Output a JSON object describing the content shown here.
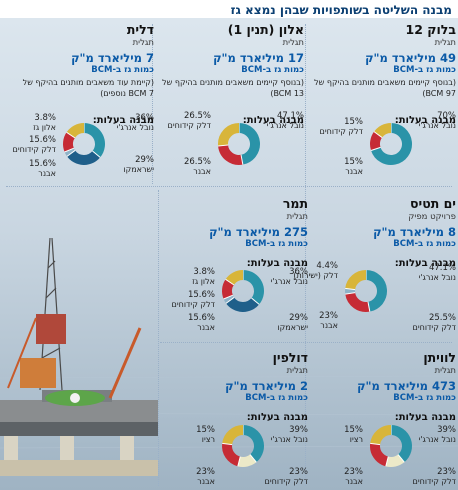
{
  "title": "מבנה השליטה בשותפויות שבהן נמצא גז",
  "colors": {
    "delek": "#c62b35",
    "noble": "#2a93a8",
    "ratio": "#d8b53a",
    "israamco": "#1f5f8a",
    "alon": "#8fb3c8",
    "other": "#ece9c8",
    "title": "#0b3f72",
    "qty": "#0b5aa7"
  },
  "panels": [
    {
      "name": "בלוק 12",
      "kind": "תגלית",
      "qty": "49 מיליארד מ\"ק",
      "qty_label": "כמות גז ב-BCM",
      "note": "(בנוסף קיימים משאבים מותנים בהיקף של BCM 97)",
      "ownership_label": "מבנה בעלות:",
      "labels": [
        {
          "pct": "70%",
          "text": "נובל אנרג'י"
        },
        {
          "pct": "15%",
          "text": "דלק קידוחים"
        },
        {
          "pct": "15%",
          "text": "אבנר"
        }
      ]
    },
    {
      "name": "אלון (תנין 1)",
      "kind": "תגלית",
      "qty": "17 מיליארד מ\"ק",
      "qty_label": "כמות גז ב-BCM",
      "note": "(בנוסף קיימים משאבים מותנים בהיקף של BCM 13)",
      "ownership_label": "מבנה בעלות:",
      "labels": [
        {
          "pct": "47.1%",
          "text": "נובל אנרג'י"
        },
        {
          "pct": "26.5%",
          "text": "דלק קידוחים"
        },
        {
          "pct": "26.5%",
          "text": "אבנר"
        }
      ]
    },
    {
      "name": "דלית",
      "kind": "תגלית",
      "qty": "7 מיליארד מ\"ק",
      "qty_label": "כמות גז ב-BCM",
      "note": "(קיימת עוד משאבים מותנים בהיקף של BCM 7 נוספים)",
      "ownership_label": "מבנה בעלות:",
      "labels": [
        {
          "pct": "36%",
          "text": "נובל אנרג'י"
        },
        {
          "pct": "29%",
          "text": "ישראמקו"
        },
        {
          "pct": "3.8%",
          "text": "אלון גז"
        },
        {
          "pct": "15.6%",
          "text": "דלק קידוחים"
        },
        {
          "pct": "15.6%",
          "text": "אבנר"
        }
      ]
    },
    {
      "name": "ים תטיס",
      "kind": "פרויקט מפיק",
      "qty": "8 מיליארד מ\"ק",
      "qty_label": "כמות גז ב-BCM",
      "note": "",
      "ownership_label": "מבנה בעלות:",
      "labels": [
        {
          "pct": "47.1%",
          "text": "נובל אנרג'י"
        },
        {
          "pct": "25.5%",
          "text": "דלק קידוחים"
        },
        {
          "pct": "4.4%",
          "text": "דלק (ישירות)"
        },
        {
          "pct": "23%",
          "text": "אבנר"
        }
      ]
    },
    {
      "name": "תמר",
      "kind": "תגלית",
      "qty": "275 מיליארד מ\"ק",
      "qty_label": "כמות גז ב-BCM",
      "note": "",
      "ownership_label": "מבנה בעלות:",
      "labels": [
        {
          "pct": "36%",
          "text": "נובל אנרג'י"
        },
        {
          "pct": "29%",
          "text": "ישראמקו"
        },
        {
          "pct": "3.8%",
          "text": "אלון גז"
        },
        {
          "pct": "15.6%",
          "text": "דלק קידוחים"
        },
        {
          "pct": "15.6%",
          "text": "אבנר"
        }
      ]
    },
    {
      "name": "לוויתן",
      "kind": "תגלית",
      "qty": "473 מיליארד מ\"ק",
      "qty_label": "כמות גז ב-BCM",
      "note": "",
      "ownership_label": "מבנה בעלות:",
      "labels": [
        {
          "pct": "39%",
          "text": "נובל אנרג'י"
        },
        {
          "pct": "15%",
          "text": "רציו"
        },
        {
          "pct": "23%",
          "text": "דלק קידוחים"
        },
        {
          "pct": "23%",
          "text": "אבנר"
        }
      ]
    },
    {
      "name": "דולפין",
      "kind": "תגלית",
      "qty": "2 מיליארד מ\"ק",
      "qty_label": "כמות גז ב-BCM",
      "note": "",
      "ownership_label": "מבנה בעלות:",
      "labels": [
        {
          "pct": "39%",
          "text": "נובל אנרג'י"
        },
        {
          "pct": "15%",
          "text": "רציו"
        },
        {
          "pct": "23%",
          "text": "דלק קידוחים"
        },
        {
          "pct": "23%",
          "text": "אבנר"
        }
      ]
    }
  ],
  "chart_data": [
    {
      "type": "pie",
      "title": "בלוק 12",
      "categories": [
        "נובל אנרג'י",
        "דלק קידוחים",
        "אבנר"
      ],
      "values": [
        70,
        15,
        15
      ]
    },
    {
      "type": "pie",
      "title": "אלון (תנין 1)",
      "categories": [
        "נובל אנרג'י",
        "דלק קידוחים",
        "אבנר"
      ],
      "values": [
        47.1,
        26.5,
        26.5
      ]
    },
    {
      "type": "pie",
      "title": "דלית",
      "categories": [
        "נובל אנרג'י",
        "ישראמקו",
        "אלון גז",
        "דלק קידוחים",
        "אבנר"
      ],
      "values": [
        36,
        29,
        3.8,
        15.6,
        15.6
      ]
    },
    {
      "type": "pie",
      "title": "ים תטיס",
      "categories": [
        "נובל אנרג'י",
        "דלק קידוחים",
        "דלק (ישירות)",
        "אבנר"
      ],
      "values": [
        47.1,
        25.5,
        4.4,
        23
      ]
    },
    {
      "type": "pie",
      "title": "תמר",
      "categories": [
        "נובל אנרג'י",
        "ישראמקו",
        "אלון גז",
        "דלק קידוחים",
        "אבנר"
      ],
      "values": [
        36,
        29,
        3.8,
        15.6,
        15.6
      ]
    },
    {
      "type": "pie",
      "title": "לוויתן",
      "categories": [
        "נובל אנרג'י",
        "רציו",
        "דלק קידוחים",
        "אבנר"
      ],
      "values": [
        39,
        15,
        23,
        23
      ]
    },
    {
      "type": "pie",
      "title": "דולפין",
      "categories": [
        "נובל אנרג'י",
        "רציו",
        "דלק קידוחים",
        "אבנר"
      ],
      "values": [
        39,
        15,
        23,
        23
      ]
    }
  ]
}
